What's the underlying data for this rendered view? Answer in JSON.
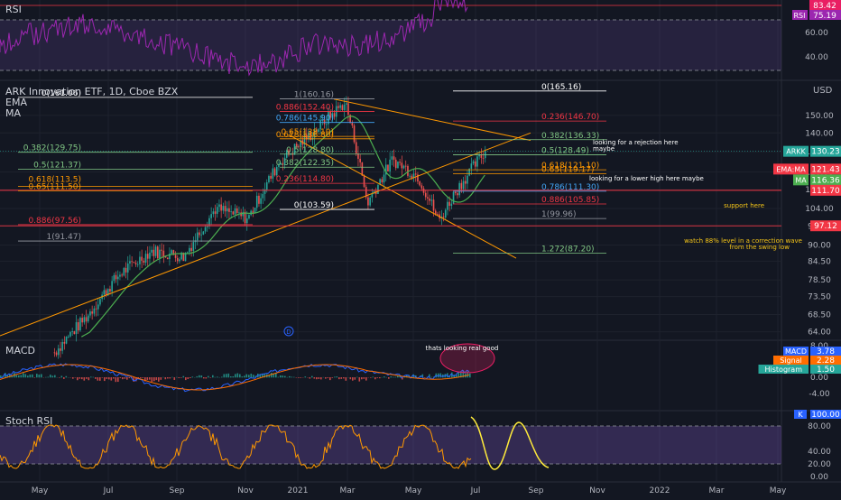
{
  "rsi": {
    "title": "RSI",
    "ticks": [
      "60.00",
      "40.00"
    ],
    "badges": [
      {
        "text": "83.42",
        "color": "#e91e63"
      },
      {
        "label": "RSI",
        "text": "75.19",
        "color": "#9c27b0"
      }
    ]
  },
  "main": {
    "title": "ARK Innovation ETF, 1D, Cboe BZX",
    "indicators": [
      "EMA",
      "MA"
    ],
    "currency": "USD",
    "ticks": [
      "150.00",
      "140.00",
      "130.00",
      "120.00",
      "112.00",
      "104.00",
      "97.00",
      "90.00",
      "84.50",
      "78.50",
      "73.50",
      "68.50",
      "64.00"
    ],
    "badges": [
      {
        "label": "ARKK",
        "text": "130.23",
        "color": "#26a69a"
      },
      {
        "label": "EMA:MA",
        "text": "121.43",
        "color": "#f23645"
      },
      {
        "label": "MA",
        "text": "116.36",
        "color": "#4caf50"
      },
      {
        "text": "111.70",
        "color": "#f23645"
      },
      {
        "text": "97.12",
        "color": "#f23645"
      }
    ],
    "fib_right": [
      "0(165.16)",
      "0.236(146.70)",
      "0.382(136.33)",
      "0.5(128.49)",
      "0.618(121.10)",
      "0.65(119.17)",
      "0.786(111.30)",
      "0.886(105.85)",
      "1(99.96)",
      "1.272(87.20)"
    ],
    "fib_mid": [
      "1(160.16)",
      "0.886(152.40)",
      "0.786(145.90)",
      "0.65(138.10)",
      "0.618(136.80)",
      "0.5(128.80)",
      "0.382(122.35)",
      "0.236(114.80)",
      "0(103.59)"
    ],
    "fib_left": [
      "0(161.06)",
      "0.382(129.75)",
      "0.5(121.37)",
      "0.618(113.5)",
      "0.65(111.50)",
      "0.886(97.56)",
      "1(91.47)"
    ],
    "notes": [
      {
        "text": "looking for a rejection here",
        "color": "#ffffff"
      },
      {
        "text": "maybe",
        "color": "#ffffff"
      },
      {
        "text": "looking for a lower high here maybe",
        "color": "#ffffff"
      },
      {
        "text": "support here",
        "color": "#f5c518"
      },
      {
        "text": "watch 88% level in a correction wave",
        "color": "#f5c518"
      },
      {
        "text": "from the swing low",
        "color": "#f5c518"
      }
    ],
    "marker": "D"
  },
  "macd": {
    "title": "MACD",
    "note": "thats looking real good",
    "ticks": [
      "8.00",
      "4.00",
      "0.00",
      "-4.00"
    ],
    "badges": [
      {
        "label": "MACD",
        "text": "3.78",
        "color": "#2962ff"
      },
      {
        "label": "Signal",
        "text": "2.28",
        "color": "#ff6d00"
      },
      {
        "label": "Histogram",
        "text": "1.50",
        "color": "#26a69a"
      }
    ]
  },
  "stoch": {
    "title": "Stoch RSI",
    "ticks": [
      "80.00",
      "40.00",
      "20.00",
      "0.00"
    ],
    "badges": [
      {
        "label": "K",
        "text": "100.00",
        "color": "#2962ff"
      }
    ]
  },
  "time_axis": [
    "May",
    "Jul",
    "Sep",
    "Nov",
    "2021",
    "Mar",
    "May",
    "Jul",
    "Sep",
    "Nov",
    "2022",
    "Mar",
    "May"
  ],
  "chart_data": {
    "type": "line",
    "title": "ARK Innovation ETF, 1D, Cboe BZX",
    "x": [
      "2020-05",
      "2020-07",
      "2020-09",
      "2020-11",
      "2021-01",
      "2021-03",
      "2021-05",
      "2021-07",
      "2021-09",
      "2021-11",
      "2022-01",
      "2022-03",
      "2022-05"
    ],
    "price_series": [
      {
        "date": "2020-05-15",
        "value": 59
      },
      {
        "date": "2020-06-15",
        "value": 68
      },
      {
        "date": "2020-07-15",
        "value": 80
      },
      {
        "date": "2020-08-15",
        "value": 88
      },
      {
        "date": "2020-09-15",
        "value": 86
      },
      {
        "date": "2020-10-15",
        "value": 104
      },
      {
        "date": "2020-11-15",
        "value": 100
      },
      {
        "date": "2020-12-15",
        "value": 125
      },
      {
        "date": "2021-01-15",
        "value": 140
      },
      {
        "date": "2021-02-15",
        "value": 158
      },
      {
        "date": "2021-03-08",
        "value": 106
      },
      {
        "date": "2021-04-01",
        "value": 126
      },
      {
        "date": "2021-04-25",
        "value": 118
      },
      {
        "date": "2021-05-15",
        "value": 99
      },
      {
        "date": "2021-06-01",
        "value": 112
      },
      {
        "date": "2021-06-28",
        "value": 130.23
      }
    ],
    "ylim": [
      63,
      168
    ],
    "last_close": 130.23,
    "ema": 121.43,
    "ma": 116.36
  }
}
